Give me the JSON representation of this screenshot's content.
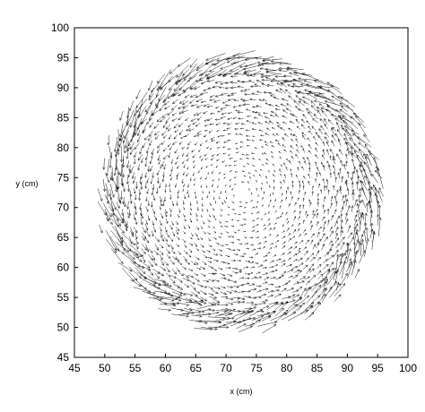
{
  "chart_data": {
    "type": "quiver",
    "title": "",
    "xlabel": "x (cm)",
    "ylabel": "y (cm)",
    "xlim": [
      45,
      100
    ],
    "ylim": [
      45,
      100
    ],
    "xticks": [
      45,
      50,
      55,
      60,
      65,
      70,
      75,
      80,
      85,
      90,
      95,
      100
    ],
    "yticks": [
      45,
      50,
      55,
      60,
      65,
      70,
      75,
      80,
      85,
      90,
      95,
      100
    ],
    "grid": false,
    "legend": "none",
    "colors": {
      "background": "#ffffff",
      "vectors": "#000000",
      "frame": "#000000"
    },
    "field": {
      "pattern": "counter-clockwise rotating vortex",
      "center": [
        72.5,
        72.5
      ],
      "radius": 23.5,
      "grid_spacing": 1,
      "max_vector_length": 1.6
    }
  }
}
